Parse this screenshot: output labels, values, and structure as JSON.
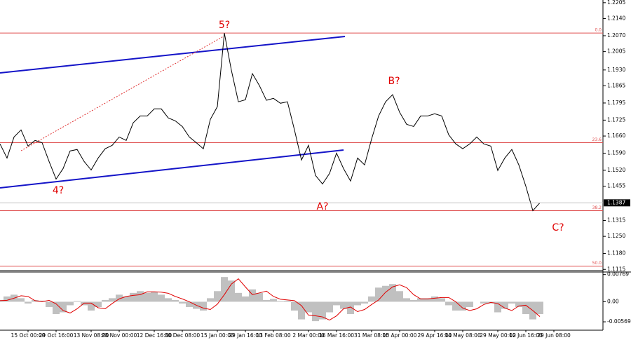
{
  "chart_data": [
    {
      "type": "line",
      "categories": [
        null,
        null,
        null,
        null,
        "15 Oct 00:00",
        null,
        null,
        null,
        "29 Oct 16:00",
        null,
        null,
        null,
        null,
        "13 Nov 08:00",
        null,
        null,
        null,
        "28 Nov 00:00",
        null,
        null,
        null,
        null,
        "12 Dec 16:00",
        null,
        null,
        null,
        "30 Dec 08:00",
        null,
        null,
        null,
        null,
        "15 Jan 00:00",
        null,
        null,
        null,
        "29 Jan 16:00",
        null,
        null,
        null,
        "13 Feb 08:00",
        null,
        null,
        null,
        null,
        "2 Mar 00:00",
        null,
        null,
        null,
        "16 Mar 16:00",
        null,
        null,
        null,
        null,
        "31 Mar 08:00",
        null,
        null,
        null,
        "15 Apr 00:00",
        null,
        null,
        null,
        null,
        "29 Apr 16:00",
        null,
        null,
        null,
        "14 May 08:00",
        null,
        null,
        null,
        null,
        "29 May 00:00",
        null,
        null,
        null,
        "12 Jun 16:00",
        null,
        null,
        null,
        "29 Jun 08:00",
        null,
        null,
        null,
        null,
        null,
        null
      ],
      "values": [
        1.1628,
        1.157,
        1.1656,
        1.1685,
        1.1619,
        1.1642,
        1.1633,
        1.1556,
        1.1484,
        1.1527,
        1.1599,
        1.1605,
        1.1556,
        1.1521,
        1.157,
        1.1608,
        1.1622,
        1.1656,
        1.1642,
        1.1714,
        1.1742,
        1.1742,
        1.1771,
        1.1771,
        1.1734,
        1.1722,
        1.1699,
        1.1656,
        1.1633,
        1.1608,
        1.1728,
        1.178,
        1.2081,
        1.1929,
        1.18,
        1.1808,
        1.1915,
        1.1866,
        1.1806,
        1.1814,
        1.1794,
        1.18,
        1.1685,
        1.1562,
        1.1622,
        1.1499,
        1.1464,
        1.1507,
        1.159,
        1.1527,
        1.1476,
        1.157,
        1.1542,
        1.1648,
        1.1742,
        1.18,
        1.1829,
        1.1757,
        1.1708,
        1.1699,
        1.1742,
        1.1742,
        1.1751,
        1.1742,
        1.1665,
        1.1628,
        1.1608,
        1.1628,
        1.1656,
        1.1628,
        1.1619,
        1.1519,
        1.157,
        1.1605,
        1.1542,
        1.1455,
        1.1355,
        1.1387,
        null,
        null,
        null,
        null,
        null,
        null,
        null,
        null
      ],
      "color": "#000000",
      "ylim": [
        1.111,
        1.2216
      ],
      "yticks": [
        1.2205,
        {
          "value": 1.214,
          "label": "1.2140"
        },
        {
          "value": 1.207,
          "label": "1.2070"
        },
        1.2005,
        {
          "value": 1.193,
          "label": "1.1930"
        },
        1.1865,
        1.1795,
        1.1725,
        {
          "value": 1.166,
          "label": "1.1660"
        },
        {
          "value": 1.159,
          "label": "1.1590"
        },
        {
          "value": 1.152,
          "label": "1.1520"
        },
        1.1455,
        1.1315,
        {
          "value": 1.125,
          "label": "1.1250"
        },
        {
          "value": 1.118,
          "label": "1.1180"
        },
        1.1115
      ],
      "levels": [
        {
          "label": "0.0",
          "value": 1.2081
        },
        {
          "label": "23.6",
          "value": 1.1633
        },
        {
          "label": "38.2",
          "value": 1.1355
        },
        {
          "label": "50.0",
          "value": 1.1128
        }
      ],
      "level_color": "#e05050",
      "last_price": 1.1387,
      "annotations": [
        "5?",
        "4?",
        "A?",
        "B?",
        "C?"
      ],
      "annotation_color": "#e00000"
    },
    {
      "type": "bar",
      "series": [
        {
          "color": "#c0c0c0",
          "values": [
            0.0005,
            0.0015,
            0.002,
            0.001,
            -0.0005,
            0.0005,
            0.0003,
            -0.0015,
            -0.0035,
            -0.003,
            -0.001,
            0.0002,
            -0.001,
            -0.0025,
            -0.0015,
            0.0005,
            0.001,
            0.002,
            0.0015,
            0.0025,
            0.003,
            0.0025,
            0.0028,
            0.002,
            0.001,
            0.0005,
            -0.0005,
            -0.0015,
            -0.002,
            -0.0025,
            0.001,
            0.003,
            0.007,
            0.006,
            0.0025,
            0.0015,
            0.0035,
            0.0025,
            0.0005,
            0.0008,
            0.0002,
            0.0003,
            -0.0025,
            -0.005,
            -0.003,
            -0.0055,
            -0.005,
            -0.003,
            -0.001,
            -0.002,
            -0.0035,
            -0.001,
            -0.0005,
            0.0015,
            0.004,
            0.0045,
            0.005,
            0.003,
            0.001,
            0.0005,
            0.001,
            0.001,
            0.0015,
            0.001,
            -0.001,
            -0.0025,
            -0.0025,
            -0.0015,
            0,
            -0.0005,
            -0.0005,
            -0.003,
            -0.002,
            -0.0005,
            -0.0015,
            -0.0035,
            -0.005,
            -0.0035,
            null,
            null,
            null,
            null,
            null,
            null,
            null,
            null
          ]
        },
        {
          "color": "#e00000",
          "type": "line",
          "values": [
            0.0003,
            0.0004,
            0.001,
            0.0017,
            0.0015,
            0.0003,
            0,
            0.0004,
            -0.0006,
            -0.0025,
            -0.0032,
            -0.002,
            -0.0004,
            -0.0004,
            -0.0017,
            -0.002,
            -0.0005,
            0.0008,
            0.0015,
            0.0018,
            0.002,
            0.0028,
            0.0028,
            0.0027,
            0.0024,
            0.0015,
            0.0008,
            0,
            -0.001,
            -0.0018,
            -0.0022,
            -0.0007,
            0.002,
            0.005,
            0.0065,
            0.0042,
            0.002,
            0.0025,
            0.003,
            0.0015,
            0.0007,
            0.0005,
            0.0003,
            -0.0011,
            -0.0038,
            -0.004,
            -0.0043,
            -0.0052,
            -0.004,
            -0.002,
            -0.0015,
            -0.0028,
            -0.0022,
            -0.0008,
            0.0005,
            0.0027,
            0.0042,
            0.0048,
            0.004,
            0.002,
            0.0008,
            0.0008,
            0.001,
            0.0012,
            0.0012,
            0,
            -0.0018,
            -0.0025,
            -0.002,
            -0.0008,
            -0.0002,
            -0.0005,
            -0.0018,
            -0.0025,
            -0.0012,
            -0.001,
            -0.0025,
            -0.0042,
            null,
            null,
            null,
            null,
            null,
            null,
            null,
            null
          ]
        }
      ],
      "ylim": [
        -0.00806,
        0.00842
      ],
      "yticks": [
        0.00769,
        {
          "value": 0,
          "label": "0.00"
        },
        -0.00569
      ]
    }
  ]
}
